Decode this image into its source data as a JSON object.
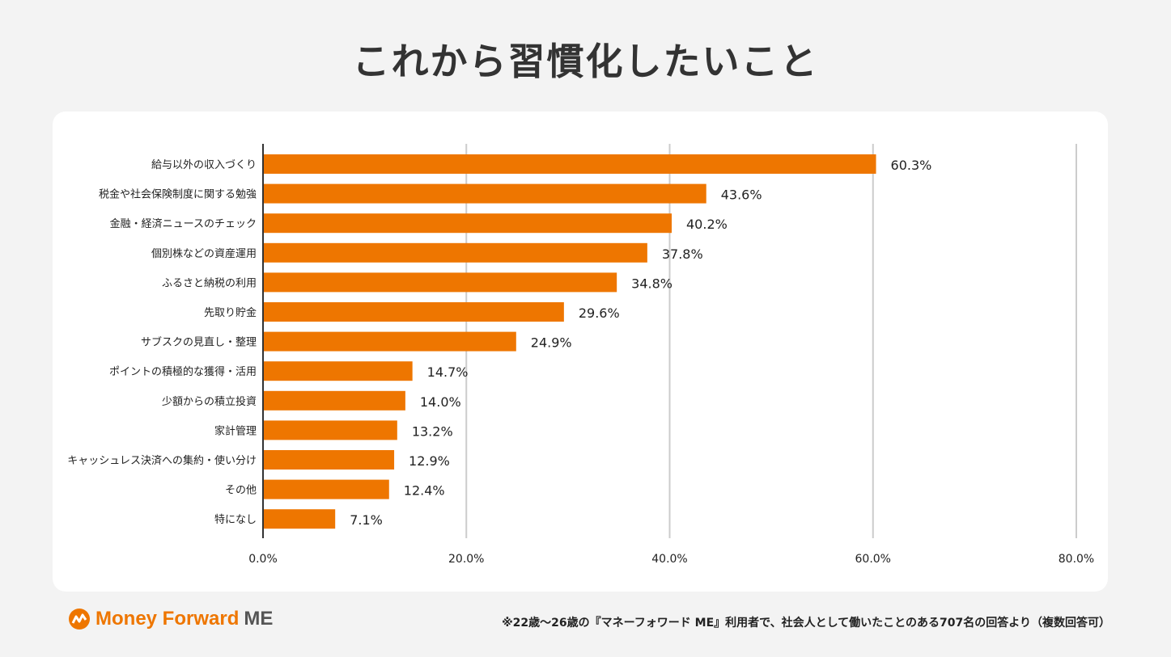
{
  "title": "これから習慣化したいこと",
  "brand": {
    "name_part1": "Money Forward",
    "name_part2": "ME",
    "color": "#ee7600"
  },
  "footnote": "※22歳〜26歳の『マネーフォワード ME』利用者で、社会人として働いたことのある707名の回答より（複数回答可）",
  "chart_data": {
    "type": "bar",
    "orientation": "horizontal",
    "categories": [
      "給与以外の収入づくり",
      "税金や社会保険制度に関する勉強",
      "金融・経済ニュースのチェック",
      "個別株などの資産運用",
      "ふるさと納税の利用",
      "先取り貯金",
      "サブスクの見直し・整理",
      "ポイントの積極的な獲得・活用",
      "少額からの積立投資",
      "家計管理",
      "キャッシュレス決済への集約・使い分け",
      "その他",
      "特になし"
    ],
    "values": [
      60.3,
      43.6,
      40.2,
      37.8,
      34.8,
      29.6,
      24.9,
      14.7,
      14.0,
      13.2,
      12.9,
      12.4,
      7.1
    ],
    "data_labels": [
      "60.3%",
      "43.6%",
      "40.2%",
      "37.8%",
      "34.8%",
      "29.6%",
      "24.9%",
      "14.7%",
      "14.0%",
      "13.2%",
      "12.9%",
      "12.4%",
      "7.1%"
    ],
    "xlim": [
      0,
      80
    ],
    "x_ticks": [
      0,
      20,
      40,
      60,
      80
    ],
    "x_tick_labels": [
      "0.0%",
      "20.0%",
      "40.0%",
      "60.0%",
      "80.0%"
    ],
    "grid": true,
    "bar_color": "#ee7600"
  }
}
